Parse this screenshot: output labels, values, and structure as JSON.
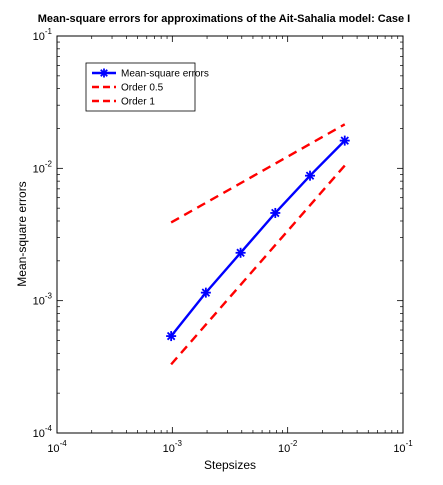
{
  "chart_data": {
    "type": "line",
    "title": "Mean-square errors for approximations of the Ait-Sahalia model:  Case I",
    "xlabel": "Stepsizes",
    "ylabel": "Mean-square errors",
    "xscale": "log",
    "yscale": "log",
    "xlim": [
      0.0001,
      0.1
    ],
    "ylim": [
      0.0001,
      0.1
    ],
    "xticks": [
      {
        "value": 0.0001,
        "base": "10",
        "exp": "-4"
      },
      {
        "value": 0.001,
        "base": "10",
        "exp": "-3"
      },
      {
        "value": 0.01,
        "base": "10",
        "exp": "-2"
      },
      {
        "value": 0.1,
        "base": "10",
        "exp": "-1"
      }
    ],
    "yticks": [
      {
        "value": 0.0001,
        "base": "10",
        "exp": "-4"
      },
      {
        "value": 0.001,
        "base": "10",
        "exp": "-3"
      },
      {
        "value": 0.01,
        "base": "10",
        "exp": "-2"
      },
      {
        "value": 0.1,
        "base": "10",
        "exp": "-1"
      }
    ],
    "grid": false,
    "legend_position": "top-left",
    "series": [
      {
        "name": "Mean-square errors",
        "color": "#0000ff",
        "style": "solid",
        "marker": "asterisk",
        "x": [
          0.0009765625,
          0.001953125,
          0.00390625,
          0.0078125,
          0.015625,
          0.03125
        ],
        "y": [
          0.00054,
          0.00115,
          0.0023,
          0.0046,
          0.0088,
          0.0162
        ]
      },
      {
        "name": "Order 0.5",
        "color": "#ff0000",
        "style": "dashed",
        "marker": "none",
        "x": [
          0.0009765625,
          0.03125
        ],
        "y": [
          0.0039,
          0.0215
        ]
      },
      {
        "name": "Order 1",
        "color": "#ff0000",
        "style": "dashed",
        "marker": "none",
        "x": [
          0.0009765625,
          0.03125
        ],
        "y": [
          0.00033,
          0.0105
        ]
      }
    ]
  }
}
